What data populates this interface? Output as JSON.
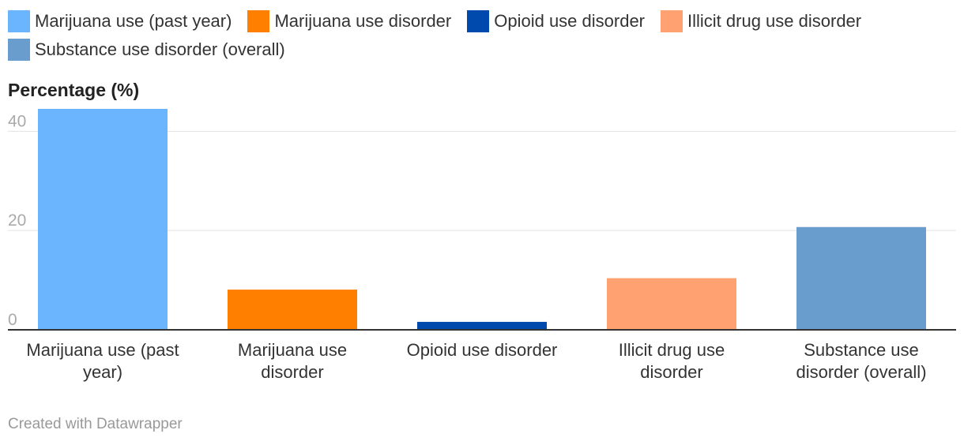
{
  "chart_data": {
    "type": "bar",
    "categories": [
      "Marijuana use (past year)",
      "Marijuana use disorder",
      "Opioid use disorder",
      "Illicit drug use disorder",
      "Substance use disorder (overall)"
    ],
    "category_labels": [
      [
        "Marijuana use (past",
        "year)"
      ],
      [
        "Marijuana use",
        "disorder"
      ],
      [
        "Opioid use disorder"
      ],
      [
        "Illicit drug use",
        "disorder"
      ],
      [
        "Substance use",
        "disorder (overall)"
      ]
    ],
    "values": [
      44.5,
      8.1,
      1.6,
      10.4,
      20.7
    ],
    "colors": [
      "#6bb5ff",
      "#ff8000",
      "#0049ad",
      "#ffa170",
      "#689dcd"
    ],
    "ylabel": "Percentage (%)",
    "yticks": [
      0,
      20,
      40
    ],
    "ylim": [
      0,
      44.5
    ],
    "grid": true,
    "legend": {
      "position": "top-left",
      "entries": [
        {
          "label": "Marijuana use (past year)",
          "color": "#6bb5ff"
        },
        {
          "label": "Marijuana use disorder",
          "color": "#ff8000"
        },
        {
          "label": "Opioid use disorder",
          "color": "#0049ad"
        },
        {
          "label": "Illicit drug use disorder",
          "color": "#ffa170"
        },
        {
          "label": "Substance use disorder (overall)",
          "color": "#689dcd"
        }
      ]
    }
  },
  "credit": "Created with Datawrapper"
}
